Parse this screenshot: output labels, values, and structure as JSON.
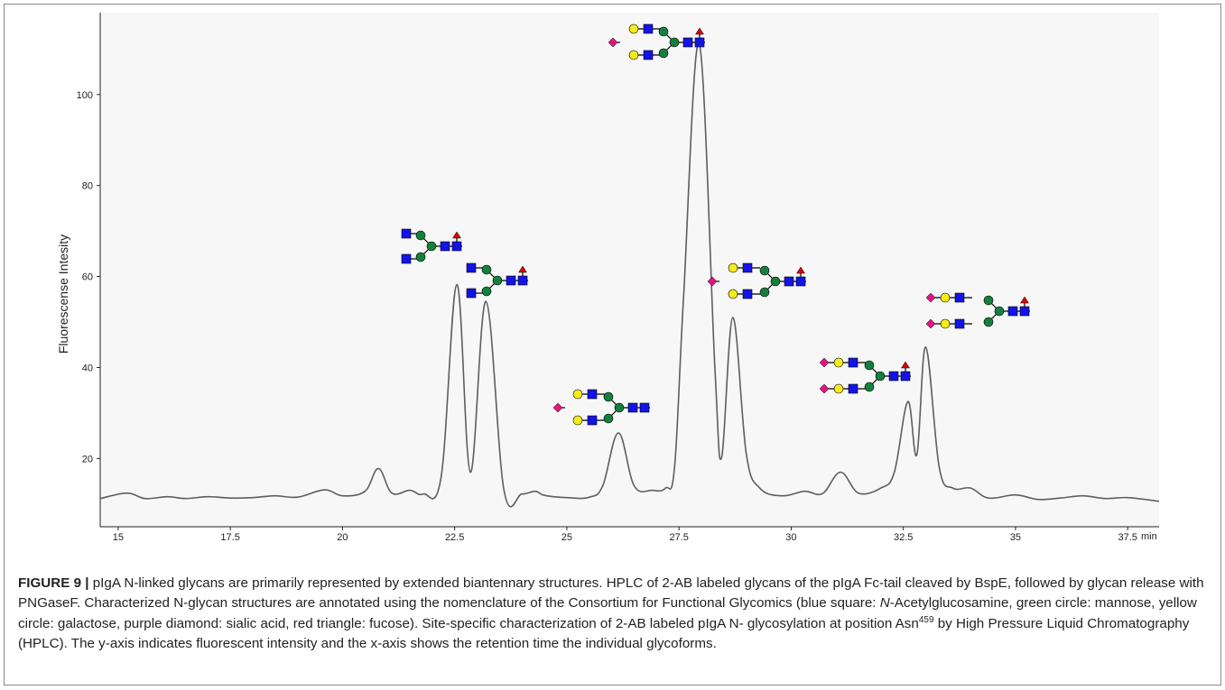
{
  "chart_data": {
    "type": "line",
    "ylabel": "Fluorescense Intesity",
    "x_unit": "min",
    "xlim": [
      14.6,
      38.2
    ],
    "ylim": [
      5,
      118
    ],
    "x_ticks": [
      "15",
      "17.5",
      "20",
      "22.5",
      "25",
      "27.5",
      "30",
      "32.5",
      "35",
      "37.5"
    ],
    "y_ticks": [
      "20",
      "40",
      "60",
      "80",
      "100"
    ],
    "series": [
      {
        "x": [
          14.6,
          15.2,
          15.6,
          16.1,
          16.5,
          17,
          17.5,
          18,
          18.5,
          19,
          19.6,
          20,
          20.5,
          20.8,
          21.1,
          21.5,
          21.8,
          22.2,
          22.55,
          22.85,
          23.2,
          23.6,
          24,
          24.3,
          24.5,
          25,
          25.5,
          25.8,
          26.15,
          26.5,
          26.9,
          27.2,
          27.4,
          27.6,
          27.95,
          28.3,
          28.45,
          28.7,
          29.0,
          29.3,
          29.8,
          30.3,
          30.7,
          31.1,
          31.5,
          32.0,
          32.3,
          32.6,
          32.8,
          33.0,
          33.3,
          33.6,
          34.0,
          34.4,
          35.0,
          35.5,
          36.0,
          36.5,
          37.0,
          37.5,
          38.2
        ],
        "y": [
          11.2,
          12.4,
          11.2,
          11.6,
          11.2,
          11.6,
          11.3,
          11.4,
          11.8,
          11.5,
          13.1,
          11.8,
          12.8,
          17.8,
          12.4,
          13.0,
          12.2,
          16.0,
          58.2,
          17.0,
          54.5,
          13.0,
          12.2,
          12.8,
          11.9,
          11.4,
          11.5,
          14.0,
          25.6,
          14.0,
          13.0,
          13.5,
          18.0,
          55.0,
          111.2,
          40.0,
          20.2,
          51.0,
          21.0,
          13.5,
          11.8,
          12.8,
          12.3,
          17.0,
          12.4,
          13.5,
          17.0,
          32.5,
          20.8,
          44.5,
          18.0,
          13.5,
          13.5,
          11.3,
          12.0,
          11.0,
          11.3,
          11.8,
          11.2,
          11.4,
          10.6
        ]
      }
    ]
  },
  "caption": {
    "lead": "FIGURE 9 |",
    "part1": " pIgA N-linked glycans are primarily represented by extended biantennary structures. HPLC of 2-AB labeled glycans of the pIgA Fc-tail cleaved by BspE, followed by glycan release with PNGaseF. Characterized N-glycan structures are annotated using the nomenclature of the Consortium for Functional Glycomics (blue square: ",
    "nacetyl_italic": "N",
    "part2": "-Acetylglucosamine, green circle: mannose, yellow circle: galactose, purple diamond: sialic acid, red triangle: fucose). Site-specific characterization of 2-AB labeled pIgA N- glycosylation at position Asn",
    "superscript": "459",
    "part3": " by High Pressure Liquid Chromatography (HPLC). The y-axis indicates fluorescent intensity and the x-axis shows the retention time the individual glycoforms."
  },
  "colors": {
    "plot_background": "#f7f7f7",
    "trace": "#5e5e5e",
    "glcnac_square": "#1414e6",
    "mannose_circle": "#13803c",
    "galactose_circle": "#f5ec1c",
    "sialic_diamond": "#e0157d",
    "fucose_triangle": "#e00000"
  }
}
